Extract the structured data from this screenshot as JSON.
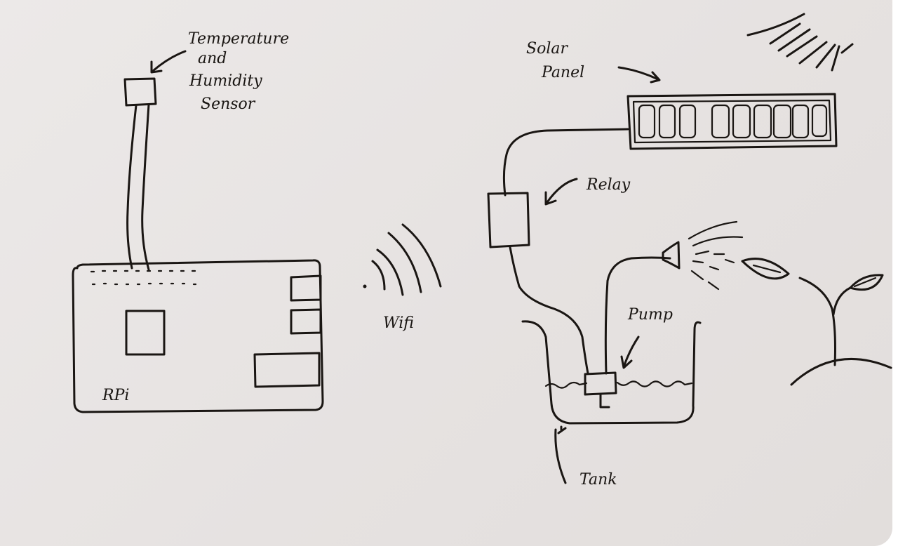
{
  "labels": {
    "sensor_line1": "Temperature",
    "sensor_line2": "and",
    "sensor_line3": "Humidity",
    "sensor_line4": "Sensor",
    "rpi": "RPi",
    "wifi": "Wifi",
    "solar_line1": "Solar",
    "solar_line2": "Panel",
    "relay": "Relay",
    "pump": "Pump",
    "tank": "Tank"
  },
  "colors": {
    "paper": "#e8e4e3",
    "ink": "#1a1613"
  }
}
